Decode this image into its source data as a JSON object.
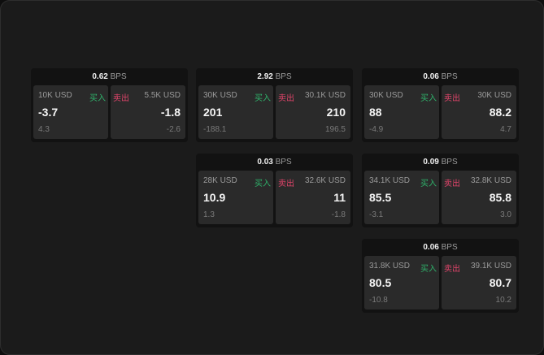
{
  "unit": "BPS",
  "buy_label": "买入",
  "sell_label": "卖出",
  "colors": {
    "buy": "#2fb36b",
    "sell": "#e0446a",
    "background": "#1b1b1b"
  },
  "cards": [
    {
      "spread": "0.62",
      "buy": {
        "size": "10K USD",
        "price": "-3.7",
        "change": "4.3"
      },
      "sell": {
        "size": "5.5K USD",
        "price": "-1.8",
        "change": "-2.6"
      }
    },
    {
      "spread": "2.92",
      "buy": {
        "size": "30K USD",
        "price": "201",
        "change": "-188.1"
      },
      "sell": {
        "size": "30.1K USD",
        "price": "210",
        "change": "196.5"
      }
    },
    {
      "spread": "0.06",
      "buy": {
        "size": "30K USD",
        "price": "88",
        "change": "-4.9"
      },
      "sell": {
        "size": "30K USD",
        "price": "88.2",
        "change": "4.7"
      }
    },
    {
      "spread": "0.03",
      "buy": {
        "size": "28K USD",
        "price": "10.9",
        "change": "1.3"
      },
      "sell": {
        "size": "32.6K USD",
        "price": "11",
        "change": "-1.8"
      }
    },
    {
      "spread": "0.09",
      "buy": {
        "size": "34.1K USD",
        "price": "85.5",
        "change": "-3.1"
      },
      "sell": {
        "size": "32.8K USD",
        "price": "85.8",
        "change": "3.0"
      }
    },
    {
      "spread": "0.06",
      "buy": {
        "size": "31.8K USD",
        "price": "80.5",
        "change": "-10.8"
      },
      "sell": {
        "size": "39.1K USD",
        "price": "80.7",
        "change": "10.2"
      }
    }
  ]
}
